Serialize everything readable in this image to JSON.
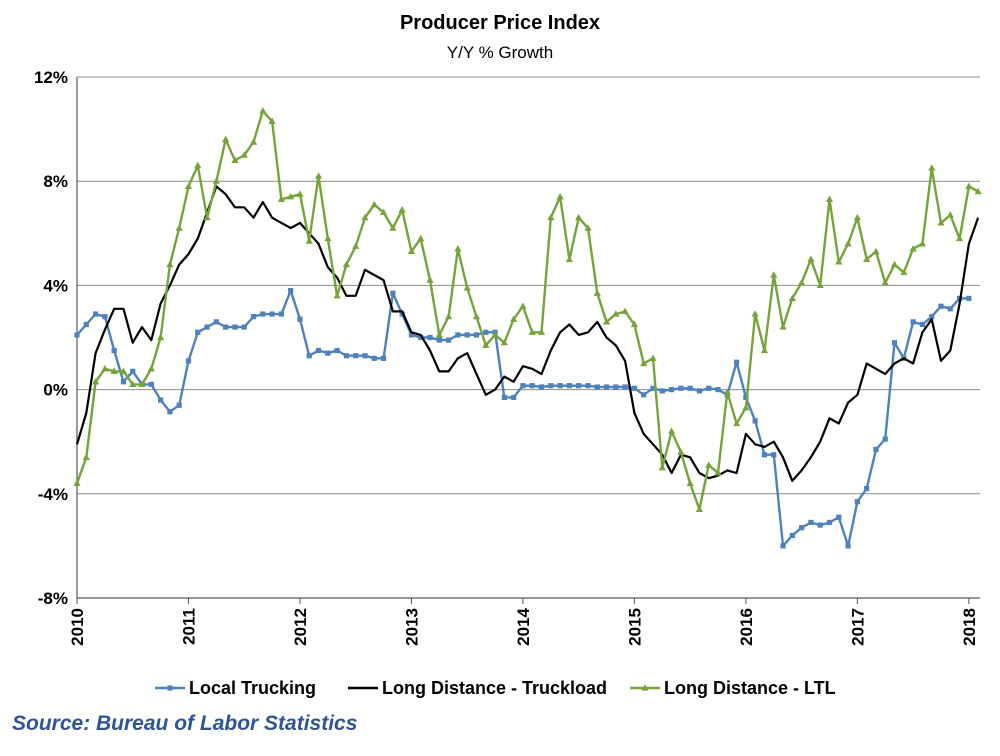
{
  "chart_data": {
    "type": "line",
    "title": "Producer Price Index",
    "subtitle": "Y/Y % Growth",
    "source": "Source: Bureau of Labor Statistics",
    "xlim": [
      2010,
      2018.1
    ],
    "ylim": [
      -8,
      12
    ],
    "y_ticks": [
      -8,
      -4,
      0,
      4,
      8,
      12
    ],
    "y_tick_labels": [
      "-8%",
      "-4%",
      "0%",
      "4%",
      "8%",
      "12%"
    ],
    "x_ticks": [
      2010,
      2011,
      2012,
      2013,
      2014,
      2015,
      2016,
      2017,
      2018
    ],
    "x_tick_labels": [
      "2010",
      "2011",
      "2012",
      "2013",
      "2014",
      "2015",
      "2016",
      "2017",
      "2018"
    ],
    "grid": true,
    "legend_position": "bottom",
    "series": [
      {
        "name": "Local Trucking",
        "color": "#4f81bd",
        "marker": "square",
        "points": [
          [
            2010.0,
            2.1
          ],
          [
            2010.0833,
            2.5
          ],
          [
            2010.1667,
            2.9
          ],
          [
            2010.25,
            2.8
          ],
          [
            2010.3333,
            1.5
          ],
          [
            2010.4167,
            0.3
          ],
          [
            2010.5,
            0.7
          ],
          [
            2010.5833,
            0.2
          ],
          [
            2010.6667,
            0.2
          ],
          [
            2010.75,
            -0.4
          ],
          [
            2010.8333,
            -0.85
          ],
          [
            2010.9167,
            -0.6
          ],
          [
            2011.0,
            1.1
          ],
          [
            2011.0833,
            2.2
          ],
          [
            2011.1667,
            2.4
          ],
          [
            2011.25,
            2.6
          ],
          [
            2011.3333,
            2.4
          ],
          [
            2011.4167,
            2.4
          ],
          [
            2011.5,
            2.4
          ],
          [
            2011.5833,
            2.8
          ],
          [
            2011.6667,
            2.9
          ],
          [
            2011.75,
            2.9
          ],
          [
            2011.8333,
            2.9
          ],
          [
            2011.9167,
            3.8
          ],
          [
            2012.0,
            2.7
          ],
          [
            2012.0833,
            1.3
          ],
          [
            2012.1667,
            1.5
          ],
          [
            2012.25,
            1.4
          ],
          [
            2012.3333,
            1.5
          ],
          [
            2012.4167,
            1.3
          ],
          [
            2012.5,
            1.3
          ],
          [
            2012.5833,
            1.3
          ],
          [
            2012.6667,
            1.2
          ],
          [
            2012.75,
            1.2
          ],
          [
            2012.8333,
            3.7
          ],
          [
            2012.9167,
            2.9
          ],
          [
            2013.0,
            2.1
          ],
          [
            2013.0833,
            2.0
          ],
          [
            2013.1667,
            2.0
          ],
          [
            2013.25,
            1.9
          ],
          [
            2013.3333,
            1.9
          ],
          [
            2013.4167,
            2.1
          ],
          [
            2013.5,
            2.1
          ],
          [
            2013.5833,
            2.1
          ],
          [
            2013.6667,
            2.2
          ],
          [
            2013.75,
            2.2
          ],
          [
            2013.8333,
            -0.3
          ],
          [
            2013.9167,
            -0.3
          ],
          [
            2014.0,
            0.15
          ],
          [
            2014.0833,
            0.15
          ],
          [
            2014.1667,
            0.1
          ],
          [
            2014.25,
            0.15
          ],
          [
            2014.3333,
            0.15
          ],
          [
            2014.4167,
            0.15
          ],
          [
            2014.5,
            0.15
          ],
          [
            2014.5833,
            0.15
          ],
          [
            2014.6667,
            0.1
          ],
          [
            2014.75,
            0.1
          ],
          [
            2014.8333,
            0.1
          ],
          [
            2014.9167,
            0.1
          ],
          [
            2015.0,
            0.05
          ],
          [
            2015.0833,
            -0.2
          ],
          [
            2015.1667,
            0.05
          ],
          [
            2015.25,
            -0.05
          ],
          [
            2015.3333,
            0.0
          ],
          [
            2015.4167,
            0.05
          ],
          [
            2015.5,
            0.05
          ],
          [
            2015.5833,
            -0.05
          ],
          [
            2015.6667,
            0.05
          ],
          [
            2015.75,
            0.0
          ],
          [
            2015.8333,
            -0.2
          ],
          [
            2015.9167,
            1.05
          ],
          [
            2016.0,
            -0.3
          ],
          [
            2016.0833,
            -1.2
          ],
          [
            2016.1667,
            -2.5
          ],
          [
            2016.25,
            -2.5
          ],
          [
            2016.3333,
            -6.0
          ],
          [
            2016.4167,
            -5.6
          ],
          [
            2016.5,
            -5.3
          ],
          [
            2016.5833,
            -5.1
          ],
          [
            2016.6667,
            -5.2
          ],
          [
            2016.75,
            -5.1
          ],
          [
            2016.8333,
            -4.9
          ],
          [
            2016.9167,
            -6.0
          ],
          [
            2017.0,
            -4.3
          ],
          [
            2017.0833,
            -3.8
          ],
          [
            2017.1667,
            -2.3
          ],
          [
            2017.25,
            -1.9
          ],
          [
            2017.3333,
            1.8
          ],
          [
            2017.4167,
            1.2
          ],
          [
            2017.5,
            2.6
          ],
          [
            2017.5833,
            2.5
          ],
          [
            2017.6667,
            2.8
          ],
          [
            2017.75,
            3.2
          ],
          [
            2017.8333,
            3.1
          ],
          [
            2017.9167,
            3.5
          ],
          [
            2018.0,
            3.5
          ]
        ]
      },
      {
        "name": "Long Distance - Truckload",
        "color": "#000000",
        "marker": "none",
        "points": [
          [
            2010.0,
            -2.1
          ],
          [
            2010.0833,
            -0.9
          ],
          [
            2010.1667,
            1.4
          ],
          [
            2010.25,
            2.3
          ],
          [
            2010.3333,
            3.1
          ],
          [
            2010.4167,
            3.1
          ],
          [
            2010.5,
            1.8
          ],
          [
            2010.5833,
            2.4
          ],
          [
            2010.6667,
            1.9
          ],
          [
            2010.75,
            3.3
          ],
          [
            2010.8333,
            4.0
          ],
          [
            2010.9167,
            4.8
          ],
          [
            2011.0,
            5.2
          ],
          [
            2011.0833,
            5.8
          ],
          [
            2011.1667,
            6.8
          ],
          [
            2011.25,
            7.8
          ],
          [
            2011.3333,
            7.5
          ],
          [
            2011.4167,
            7.0
          ],
          [
            2011.5,
            7.0
          ],
          [
            2011.5833,
            6.6
          ],
          [
            2011.6667,
            7.2
          ],
          [
            2011.75,
            6.6
          ],
          [
            2011.8333,
            6.4
          ],
          [
            2011.9167,
            6.2
          ],
          [
            2012.0,
            6.4
          ],
          [
            2012.0833,
            6.0
          ],
          [
            2012.1667,
            5.6
          ],
          [
            2012.25,
            4.7
          ],
          [
            2012.3333,
            4.3
          ],
          [
            2012.4167,
            3.6
          ],
          [
            2012.5,
            3.6
          ],
          [
            2012.5833,
            4.6
          ],
          [
            2012.6667,
            4.4
          ],
          [
            2012.75,
            4.2
          ],
          [
            2012.8333,
            3.0
          ],
          [
            2012.9167,
            3.0
          ],
          [
            2013.0,
            2.2
          ],
          [
            2013.0833,
            2.1
          ],
          [
            2013.1667,
            1.5
          ],
          [
            2013.25,
            0.7
          ],
          [
            2013.3333,
            0.7
          ],
          [
            2013.4167,
            1.2
          ],
          [
            2013.5,
            1.4
          ],
          [
            2013.5833,
            0.6
          ],
          [
            2013.6667,
            -0.2
          ],
          [
            2013.75,
            0.0
          ],
          [
            2013.8333,
            0.5
          ],
          [
            2013.9167,
            0.3
          ],
          [
            2014.0,
            0.9
          ],
          [
            2014.0833,
            0.8
          ],
          [
            2014.1667,
            0.6
          ],
          [
            2014.25,
            1.5
          ],
          [
            2014.3333,
            2.2
          ],
          [
            2014.4167,
            2.5
          ],
          [
            2014.5,
            2.1
          ],
          [
            2014.5833,
            2.2
          ],
          [
            2014.6667,
            2.6
          ],
          [
            2014.75,
            2.0
          ],
          [
            2014.8333,
            1.7
          ],
          [
            2014.9167,
            1.1
          ],
          [
            2015.0,
            -0.9
          ],
          [
            2015.0833,
            -1.7
          ],
          [
            2015.1667,
            -2.1
          ],
          [
            2015.25,
            -2.5
          ],
          [
            2015.3333,
            -3.2
          ],
          [
            2015.4167,
            -2.5
          ],
          [
            2015.5,
            -2.6
          ],
          [
            2015.5833,
            -3.2
          ],
          [
            2015.6667,
            -3.4
          ],
          [
            2015.75,
            -3.3
          ],
          [
            2015.8333,
            -3.1
          ],
          [
            2015.9167,
            -3.2
          ],
          [
            2016.0,
            -1.7
          ],
          [
            2016.0833,
            -2.1
          ],
          [
            2016.1667,
            -2.2
          ],
          [
            2016.25,
            -2.0
          ],
          [
            2016.3333,
            -2.6
          ],
          [
            2016.4167,
            -3.5
          ],
          [
            2016.5,
            -3.1
          ],
          [
            2016.5833,
            -2.6
          ],
          [
            2016.6667,
            -2.0
          ],
          [
            2016.75,
            -1.1
          ],
          [
            2016.8333,
            -1.3
          ],
          [
            2016.9167,
            -0.5
          ],
          [
            2017.0,
            -0.2
          ],
          [
            2017.0833,
            1.0
          ],
          [
            2017.1667,
            0.8
          ],
          [
            2017.25,
            0.6
          ],
          [
            2017.3333,
            1.0
          ],
          [
            2017.4167,
            1.2
          ],
          [
            2017.5,
            1.0
          ],
          [
            2017.5833,
            2.2
          ],
          [
            2017.6667,
            2.7
          ],
          [
            2017.75,
            1.1
          ],
          [
            2017.8333,
            1.5
          ],
          [
            2017.9167,
            3.3
          ],
          [
            2018.0,
            5.6
          ],
          [
            2018.0833,
            6.6
          ]
        ]
      },
      {
        "name": "Long Distance - LTL",
        "color": "#77a33b",
        "marker": "triangle",
        "points": [
          [
            2010.0,
            -3.6
          ],
          [
            2010.0833,
            -2.6
          ],
          [
            2010.1667,
            0.3
          ],
          [
            2010.25,
            0.8
          ],
          [
            2010.3333,
            0.7
          ],
          [
            2010.4167,
            0.7
          ],
          [
            2010.5,
            0.2
          ],
          [
            2010.5833,
            0.2
          ],
          [
            2010.6667,
            0.8
          ],
          [
            2010.75,
            2.0
          ],
          [
            2010.8333,
            4.8
          ],
          [
            2010.9167,
            6.2
          ],
          [
            2011.0,
            7.8
          ],
          [
            2011.0833,
            8.6
          ],
          [
            2011.1667,
            6.6
          ],
          [
            2011.25,
            8.0
          ],
          [
            2011.3333,
            9.6
          ],
          [
            2011.4167,
            8.8
          ],
          [
            2011.5,
            9.0
          ],
          [
            2011.5833,
            9.5
          ],
          [
            2011.6667,
            10.7
          ],
          [
            2011.75,
            10.3
          ],
          [
            2011.8333,
            7.3
          ],
          [
            2011.9167,
            7.4
          ],
          [
            2012.0,
            7.5
          ],
          [
            2012.0833,
            5.7
          ],
          [
            2012.1667,
            8.2
          ],
          [
            2012.25,
            5.8
          ],
          [
            2012.3333,
            3.6
          ],
          [
            2012.4167,
            4.8
          ],
          [
            2012.5,
            5.5
          ],
          [
            2012.5833,
            6.6
          ],
          [
            2012.6667,
            7.1
          ],
          [
            2012.75,
            6.8
          ],
          [
            2012.8333,
            6.2
          ],
          [
            2012.9167,
            6.9
          ],
          [
            2013.0,
            5.3
          ],
          [
            2013.0833,
            5.8
          ],
          [
            2013.1667,
            4.2
          ],
          [
            2013.25,
            2.1
          ],
          [
            2013.3333,
            2.8
          ],
          [
            2013.4167,
            5.4
          ],
          [
            2013.5,
            3.9
          ],
          [
            2013.5833,
            2.8
          ],
          [
            2013.6667,
            1.7
          ],
          [
            2013.75,
            2.1
          ],
          [
            2013.8333,
            1.8
          ],
          [
            2013.9167,
            2.7
          ],
          [
            2014.0,
            3.2
          ],
          [
            2014.0833,
            2.2
          ],
          [
            2014.1667,
            2.2
          ],
          [
            2014.25,
            6.6
          ],
          [
            2014.3333,
            7.4
          ],
          [
            2014.4167,
            5.0
          ],
          [
            2014.5,
            6.6
          ],
          [
            2014.5833,
            6.2
          ],
          [
            2014.6667,
            3.7
          ],
          [
            2014.75,
            2.6
          ],
          [
            2014.8333,
            2.9
          ],
          [
            2014.9167,
            3.0
          ],
          [
            2015.0,
            2.5
          ],
          [
            2015.0833,
            1.0
          ],
          [
            2015.1667,
            1.2
          ],
          [
            2015.25,
            -3.0
          ],
          [
            2015.3333,
            -1.6
          ],
          [
            2015.4167,
            -2.4
          ],
          [
            2015.5,
            -3.6
          ],
          [
            2015.5833,
            -4.6
          ],
          [
            2015.6667,
            -2.9
          ],
          [
            2015.75,
            -3.2
          ],
          [
            2015.8333,
            -0.1
          ],
          [
            2015.9167,
            -1.3
          ],
          [
            2016.0,
            -0.7
          ],
          [
            2016.0833,
            2.9
          ],
          [
            2016.1667,
            1.5
          ],
          [
            2016.25,
            4.4
          ],
          [
            2016.3333,
            2.4
          ],
          [
            2016.4167,
            3.5
          ],
          [
            2016.5,
            4.1
          ],
          [
            2016.5833,
            5.0
          ],
          [
            2016.6667,
            4.0
          ],
          [
            2016.75,
            7.3
          ],
          [
            2016.8333,
            4.9
          ],
          [
            2016.9167,
            5.6
          ],
          [
            2017.0,
            6.6
          ],
          [
            2017.0833,
            5.0
          ],
          [
            2017.1667,
            5.3
          ],
          [
            2017.25,
            4.1
          ],
          [
            2017.3333,
            4.8
          ],
          [
            2017.4167,
            4.5
          ],
          [
            2017.5,
            5.4
          ],
          [
            2017.5833,
            5.6
          ],
          [
            2017.6667,
            8.5
          ],
          [
            2017.75,
            6.4
          ],
          [
            2017.8333,
            6.7
          ],
          [
            2017.9167,
            5.8
          ],
          [
            2018.0,
            7.8
          ],
          [
            2018.0833,
            7.6
          ]
        ]
      }
    ]
  }
}
